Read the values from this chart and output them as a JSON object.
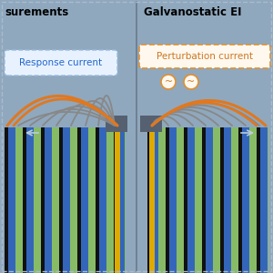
{
  "bg_color": "#8fa8be",
  "divider_color": "#6a7a8a",
  "left_title": "surements",
  "right_title": "Galvanostatic EI",
  "left_label": "Response current",
  "right_label": "Perturbation current",
  "left_label_bg": "#e8f2ff",
  "right_label_bg": "#fff8ee",
  "left_label_border": "#99bbdd",
  "right_label_border": "#e09030",
  "label_text_color_left": "#2266cc",
  "label_text_color_right": "#cc7722",
  "stripe_black": "#111111",
  "stripe_blue": "#3366bb",
  "stripe_green": "#88bb66",
  "stripe_gray": "#6a8090",
  "gold_color": "#ddaa00",
  "dark_cap_color": "#556070",
  "wire_orange": "#e07820",
  "wire_gray": "#888888",
  "wire_gray2": "#707070",
  "wire_gray3": "#999999",
  "outer_border": "#aabbcc"
}
